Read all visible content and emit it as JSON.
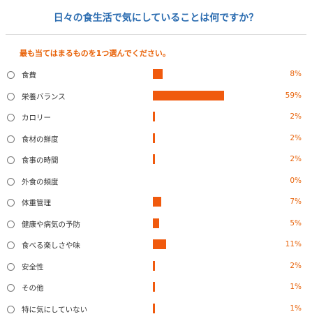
{
  "question": "日々の食生活で気にしていることは何ですか？",
  "instruction": "最も当てはまるものを1つ選んでください。",
  "options": [
    {
      "label": "食費",
      "percent_label": "8%",
      "value": 8
    },
    {
      "label": "栄養バランス",
      "percent_label": "59%",
      "value": 59
    },
    {
      "label": "カロリー",
      "percent_label": "2%",
      "value": 2
    },
    {
      "label": "食材の鮮度",
      "percent_label": "2%",
      "value": 2
    },
    {
      "label": "食事の時間",
      "percent_label": "2%",
      "value": 2
    },
    {
      "label": "外食の頻度",
      "percent_label": "0%",
      "value": 0
    },
    {
      "label": "体重管理",
      "percent_label": "7%",
      "value": 7
    },
    {
      "label": "健康や病気の予防",
      "percent_label": "5%",
      "value": 5
    },
    {
      "label": "食べる楽しさや味",
      "percent_label": "11%",
      "value": 11
    },
    {
      "label": "安全性",
      "percent_label": "2%",
      "value": 2
    },
    {
      "label": "その他",
      "percent_label": "1%",
      "value": 1
    },
    {
      "label": "特に気にしていない",
      "percent_label": "1%",
      "value": 1
    }
  ],
  "colors": {
    "title": "#2b6cb0",
    "accent": "#e8630a",
    "bar": "#f05a0e"
  }
}
